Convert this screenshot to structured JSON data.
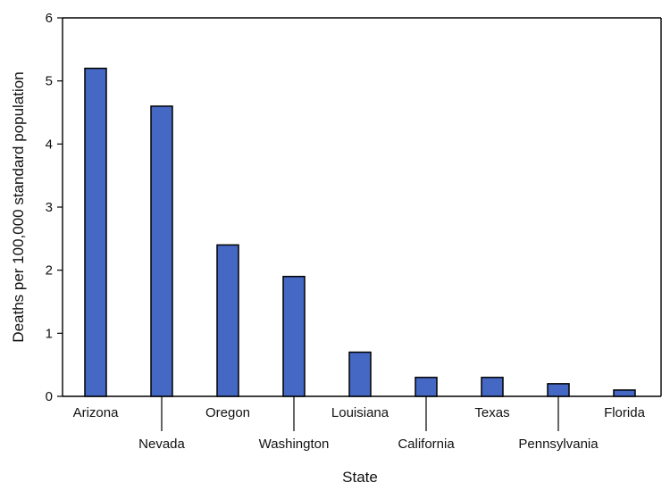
{
  "chart_data": {
    "type": "bar",
    "categories": [
      "Arizona",
      "Nevada",
      "Oregon",
      "Washington",
      "Louisiana",
      "California",
      "Texas",
      "Pennsylvania",
      "Florida"
    ],
    "values": [
      5.2,
      4.6,
      2.4,
      1.9,
      0.7,
      0.3,
      0.3,
      0.2,
      0.1
    ],
    "xlabel": "State",
    "ylabel": "Deaths per 100,000 standard population",
    "ylim": [
      0,
      6
    ],
    "yticks": [
      0,
      1,
      2,
      3,
      4,
      5,
      6
    ],
    "ytick_labels": [
      "0",
      "1",
      "2",
      "3",
      "4",
      "5",
      "6"
    ],
    "grid": false,
    "bar_color": "#4468c4"
  }
}
